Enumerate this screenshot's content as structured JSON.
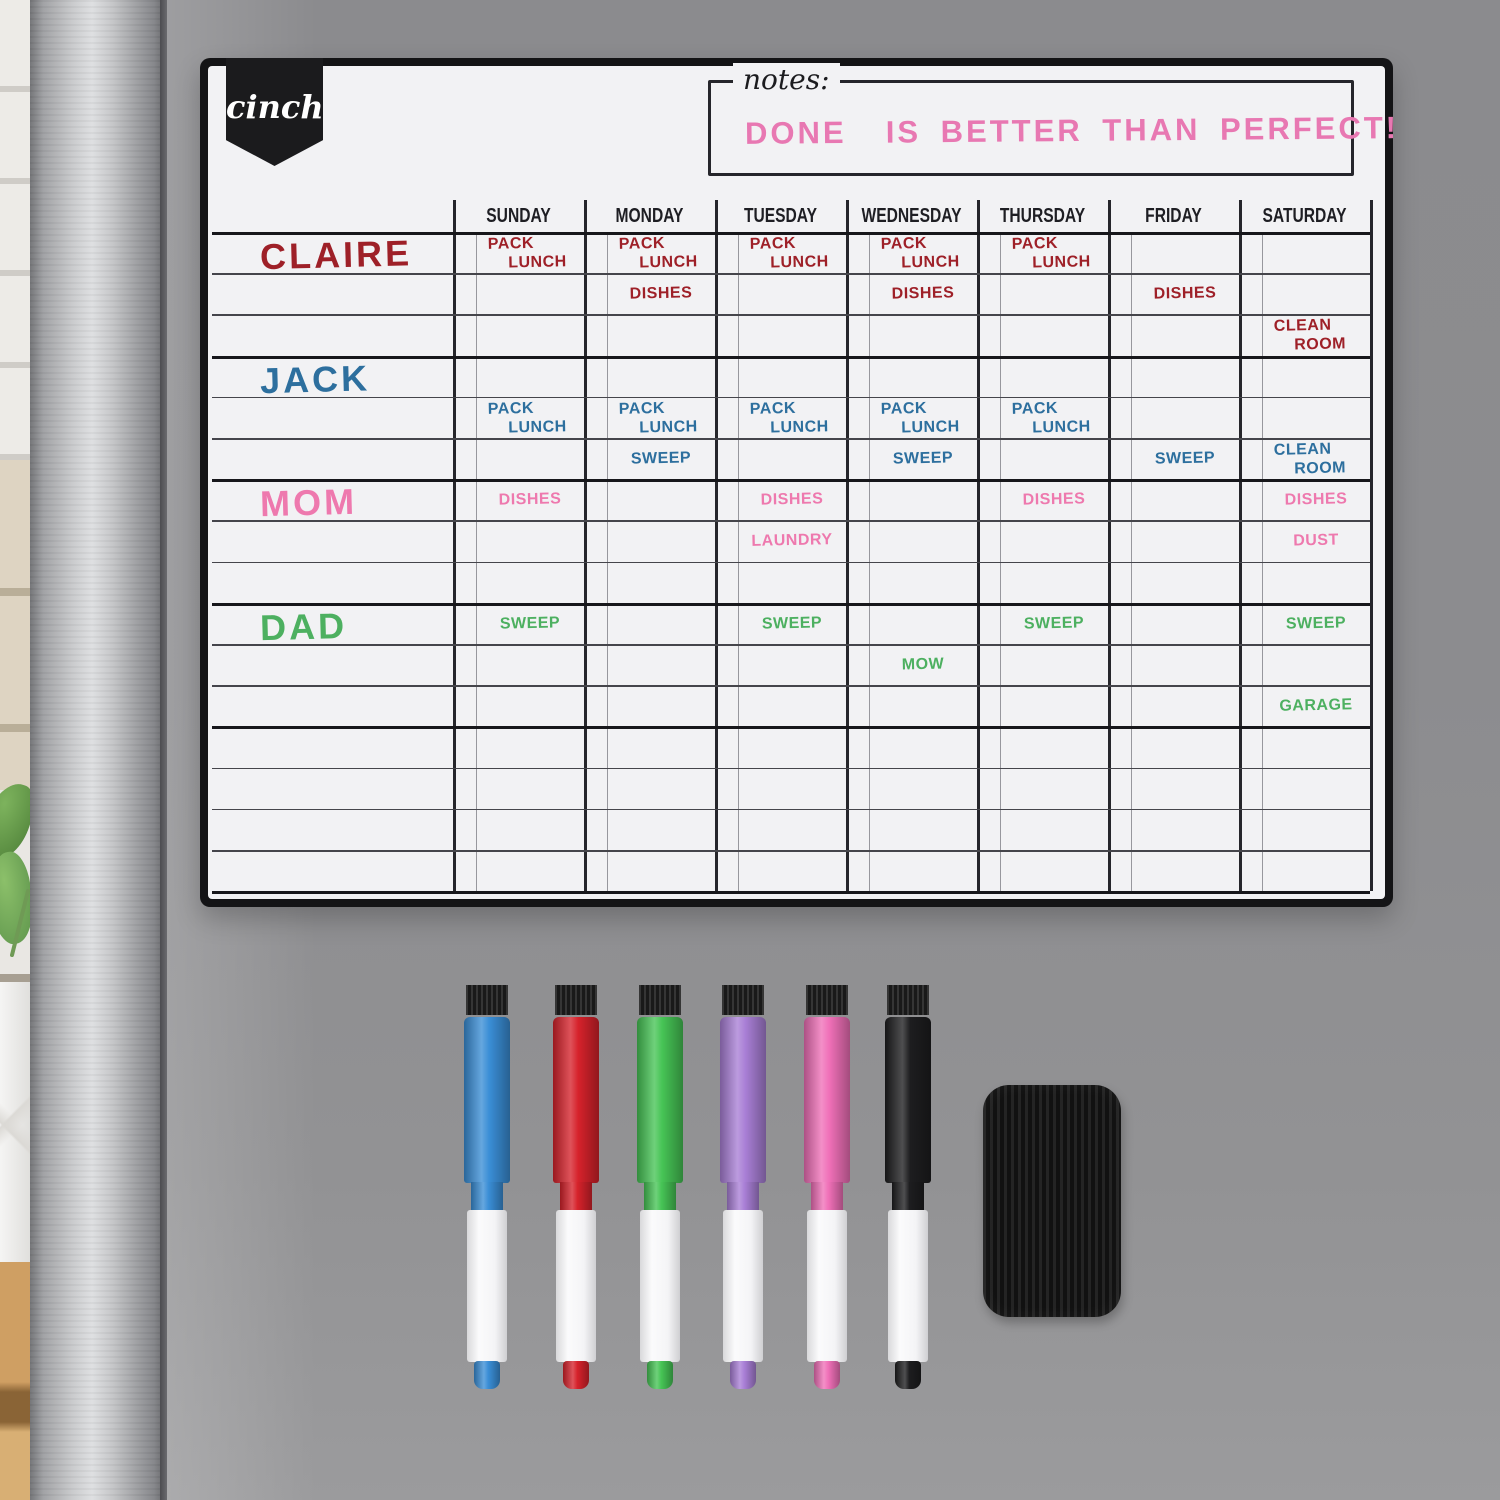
{
  "brand": {
    "logo_text": "cinch!"
  },
  "notes": {
    "label": "notes:",
    "message": "DONE  IS BETTER THAN PERFECT!",
    "ink": "#e878b2"
  },
  "chore_chart": {
    "days": [
      "SUNDAY",
      "MONDAY",
      "TUESDAY",
      "WEDNESDAY",
      "THURSDAY",
      "FRIDAY",
      "SATURDAY"
    ],
    "rows_per_person": 3,
    "trailing_empty_rows": 4,
    "people": [
      {
        "name": "CLAIRE",
        "ink": "#9e2028",
        "tasks": [
          {
            "row": 0,
            "day": "SUNDAY",
            "text": "PACK LUNCH"
          },
          {
            "row": 0,
            "day": "MONDAY",
            "text": "PACK LUNCH"
          },
          {
            "row": 0,
            "day": "TUESDAY",
            "text": "PACK LUNCH"
          },
          {
            "row": 0,
            "day": "WEDNESDAY",
            "text": "PACK LUNCH"
          },
          {
            "row": 0,
            "day": "THURSDAY",
            "text": "PACK LUNCH"
          },
          {
            "row": 1,
            "day": "MONDAY",
            "text": "DISHES"
          },
          {
            "row": 1,
            "day": "WEDNESDAY",
            "text": "DISHES"
          },
          {
            "row": 1,
            "day": "FRIDAY",
            "text": "DISHES"
          },
          {
            "row": 2,
            "day": "SATURDAY",
            "text": "CLEAN ROOM"
          }
        ]
      },
      {
        "name": "JACK",
        "ink": "#2d6f9e",
        "tasks": [
          {
            "row": 1,
            "day": "SUNDAY",
            "text": "PACK LUNCH"
          },
          {
            "row": 1,
            "day": "MONDAY",
            "text": "PACK LUNCH"
          },
          {
            "row": 1,
            "day": "TUESDAY",
            "text": "PACK LUNCH"
          },
          {
            "row": 1,
            "day": "WEDNESDAY",
            "text": "PACK LUNCH"
          },
          {
            "row": 1,
            "day": "THURSDAY",
            "text": "PACK LUNCH"
          },
          {
            "row": 2,
            "day": "MONDAY",
            "text": "SWEEP"
          },
          {
            "row": 2,
            "day": "WEDNESDAY",
            "text": "SWEEP"
          },
          {
            "row": 2,
            "day": "FRIDAY",
            "text": "SWEEP"
          },
          {
            "row": 2,
            "day": "SATURDAY",
            "text": "CLEAN ROOM"
          }
        ]
      },
      {
        "name": "MOM",
        "ink": "#ee79ae",
        "tasks": [
          {
            "row": 0,
            "day": "SUNDAY",
            "text": "DISHES"
          },
          {
            "row": 0,
            "day": "TUESDAY",
            "text": "DISHES"
          },
          {
            "row": 0,
            "day": "THURSDAY",
            "text": "DISHES"
          },
          {
            "row": 0,
            "day": "SATURDAY",
            "text": "DISHES"
          },
          {
            "row": 1,
            "day": "TUESDAY",
            "text": "LAUNDRY"
          },
          {
            "row": 1,
            "day": "SATURDAY",
            "text": "DUST"
          }
        ]
      },
      {
        "name": "DAD",
        "ink": "#4db060",
        "tasks": [
          {
            "row": 0,
            "day": "SUNDAY",
            "text": "SWEEP"
          },
          {
            "row": 0,
            "day": "TUESDAY",
            "text": "SWEEP"
          },
          {
            "row": 0,
            "day": "THURSDAY",
            "text": "SWEEP"
          },
          {
            "row": 0,
            "day": "SATURDAY",
            "text": "SWEEP"
          },
          {
            "row": 1,
            "day": "WEDNESDAY",
            "text": "MOW"
          },
          {
            "row": 2,
            "day": "SATURDAY",
            "text": "GARAGE"
          }
        ]
      }
    ]
  },
  "markers": [
    {
      "name": "blue-marker",
      "hex": "#3a8ed6"
    },
    {
      "name": "red-marker",
      "hex": "#d6222b"
    },
    {
      "name": "green-marker",
      "hex": "#46c455"
    },
    {
      "name": "purple-marker",
      "hex": "#a97fd6"
    },
    {
      "name": "pink-marker",
      "hex": "#f070b8"
    },
    {
      "name": "black-marker",
      "hex": "#1d1d1f"
    }
  ],
  "eraser": {
    "name": "magnetic-eraser",
    "hex": "#111111"
  }
}
